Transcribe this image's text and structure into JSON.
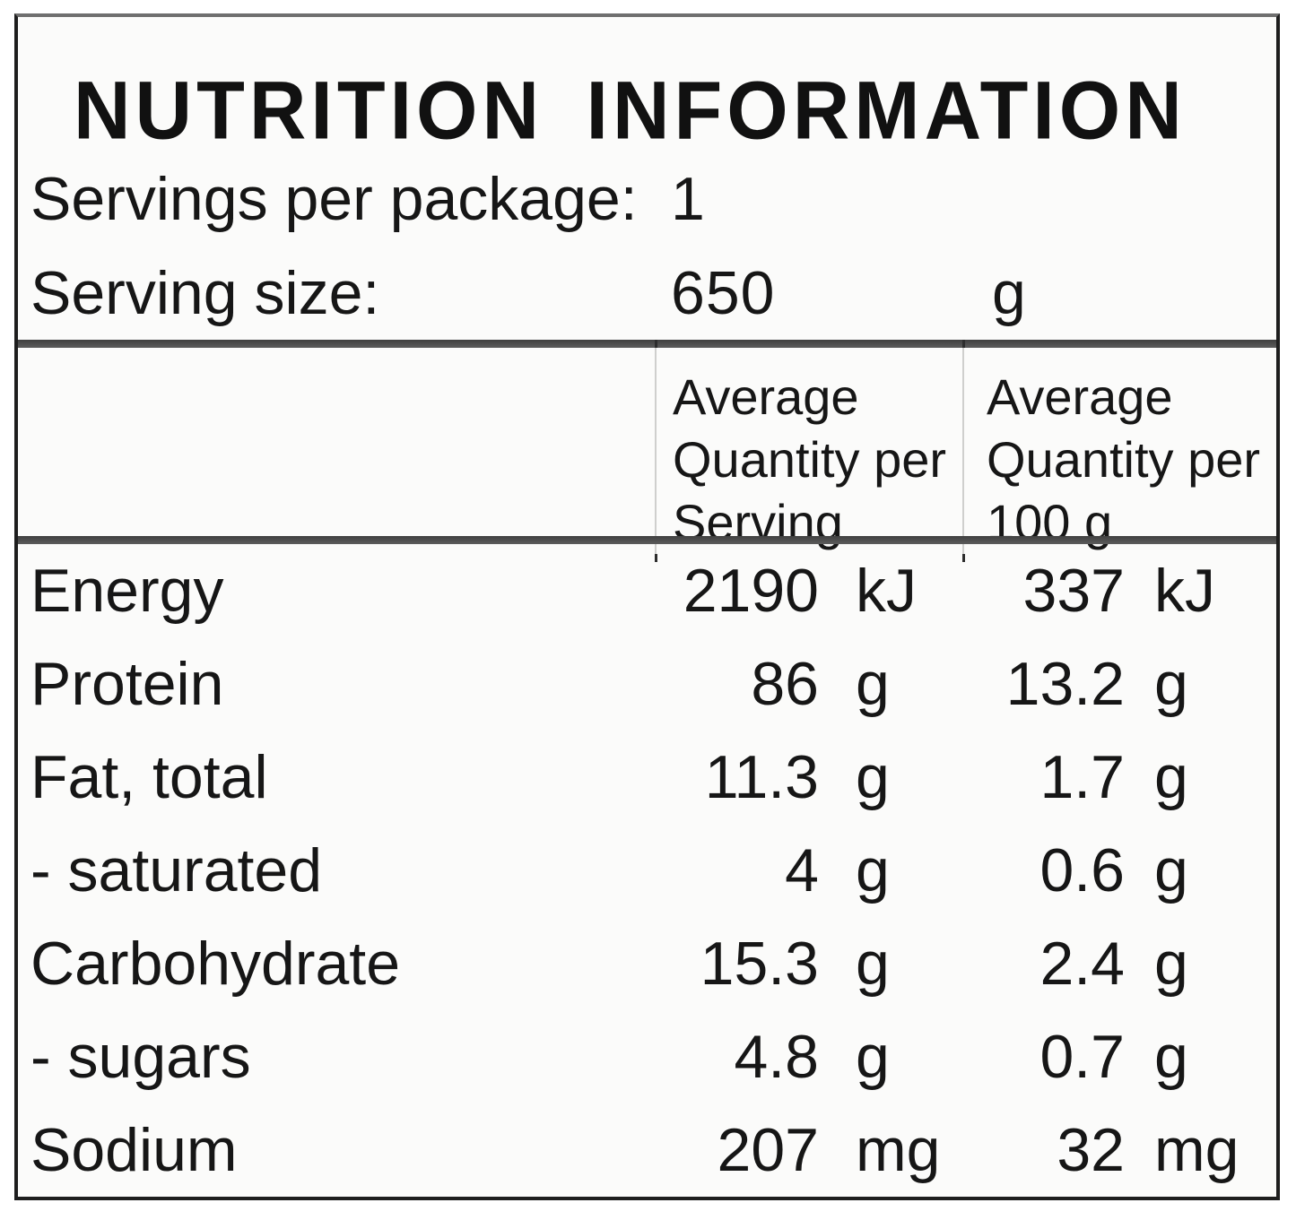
{
  "label": {
    "title": "NUTRITION INFORMATION",
    "serving_info": [
      {
        "label": "Servings per package:",
        "value": "1",
        "unit": ""
      },
      {
        "label": "Serving size:",
        "value": "650",
        "unit": "g"
      }
    ],
    "columns": {
      "nutrient": "",
      "per_serving": "Average Quantity per Serving",
      "per_100g": "Average Quantity per 100 g"
    },
    "rows": [
      {
        "nutrient": "Energy",
        "per_serving": "2190",
        "per_serving_unit": "kJ",
        "per_100g": "337",
        "per_100g_unit": "kJ"
      },
      {
        "nutrient": "Protein",
        "per_serving": "86",
        "per_serving_unit": "g",
        "per_100g": "13.2",
        "per_100g_unit": "g"
      },
      {
        "nutrient": "Fat, total",
        "per_serving": "11.3",
        "per_serving_unit": "g",
        "per_100g": "1.7",
        "per_100g_unit": "g"
      },
      {
        "nutrient": "- saturated",
        "per_serving": "4",
        "per_serving_unit": "g",
        "per_100g": "0.6",
        "per_100g_unit": "g"
      },
      {
        "nutrient": "Carbohydrate",
        "per_serving": "15.3",
        "per_serving_unit": "g",
        "per_100g": "2.4",
        "per_100g_unit": "g"
      },
      {
        "nutrient": "- sugars",
        "per_serving": "4.8",
        "per_serving_unit": "g",
        "per_100g": "0.7",
        "per_100g_unit": "g"
      },
      {
        "nutrient": "Sodium",
        "per_serving": "207",
        "per_serving_unit": "mg",
        "per_100g": "32",
        "per_100g_unit": "mg"
      }
    ],
    "colors": {
      "border_dark": "#1e1e1e",
      "border_top_gray": "#6f6f6f",
      "divider_gray": "#4a4a4a",
      "header_separator": "#cfcfcd",
      "background": "#fbfbfa",
      "text": "#161616"
    }
  }
}
